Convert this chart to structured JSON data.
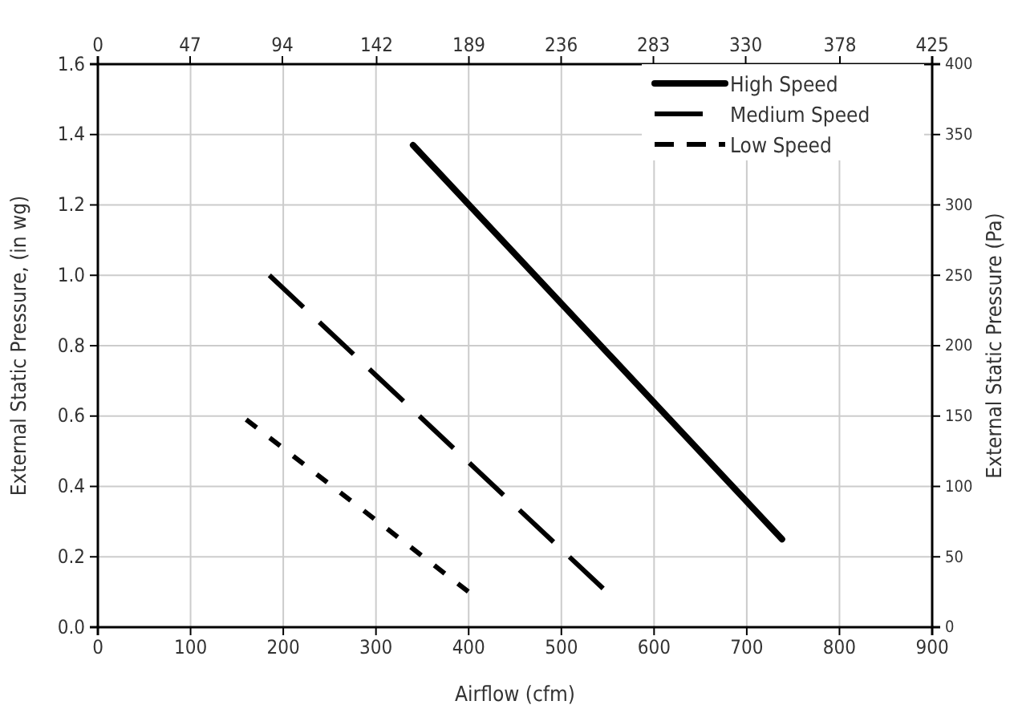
{
  "chart_data": {
    "type": "line",
    "xlabel": "Airflow (cfm)",
    "ylabel": "External Static Pressure, (in wg)",
    "y2label": "External Static Pressure (Pa)",
    "xlim": [
      0,
      900
    ],
    "xticks": [
      0,
      100,
      200,
      300,
      400,
      500,
      600,
      700,
      800,
      900
    ],
    "x2lim": [
      0,
      425
    ],
    "x2ticks": [
      0,
      47,
      94,
      142,
      189,
      236,
      283,
      330,
      378,
      425
    ],
    "ylim": [
      0,
      1.6
    ],
    "yticks": [
      {
        "value": 0,
        "label": "0.0"
      },
      0.2,
      0.4,
      0.6,
      0.8,
      {
        "value": 1,
        "label": "1.0"
      },
      1.2,
      1.4,
      1.6
    ],
    "y2lim": [
      0,
      400
    ],
    "y2ticks": [
      0,
      50,
      100,
      150,
      200,
      250,
      300,
      350,
      400
    ],
    "grid": true,
    "legend": "top right",
    "marker": "none",
    "series": [
      {
        "name": "High Speed",
        "color": "#000000",
        "line_style": "solid",
        "x": [
          340,
          738
        ],
        "values": [
          1.37,
          0.25
        ]
      },
      {
        "name": "Medium Speed",
        "color": "#000000",
        "line_style": "dashed",
        "x": [
          185,
          545
        ],
        "values": [
          1.0,
          0.11
        ]
      },
      {
        "name": "Low Speed",
        "color": "#000000",
        "line_style": "dotted",
        "x": [
          160,
          400
        ],
        "values": [
          0.59,
          0.1
        ]
      }
    ]
  }
}
